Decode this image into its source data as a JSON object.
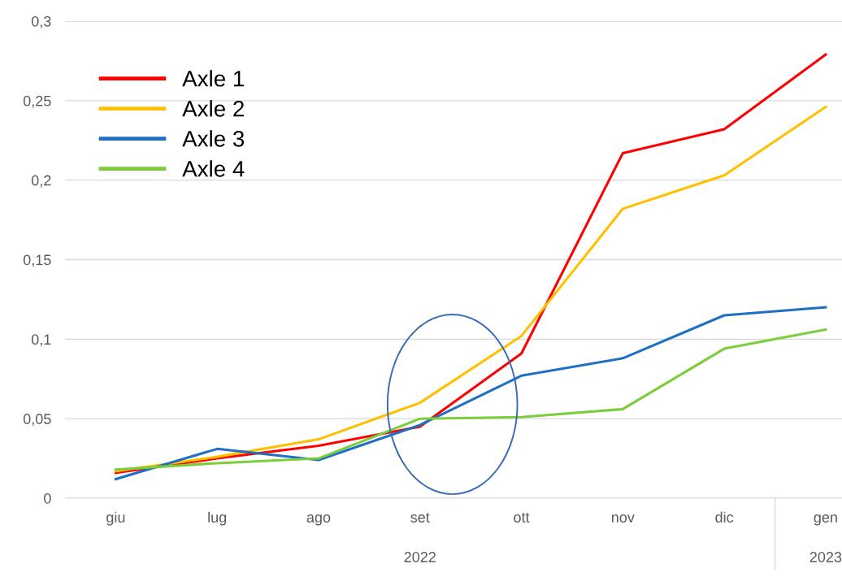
{
  "chart_data": {
    "type": "line",
    "categories": [
      "giu",
      "lug",
      "ago",
      "set",
      "ott",
      "nov",
      "dic",
      "gen"
    ],
    "series": [
      {
        "name": "Axle 1",
        "color": "#ff0000",
        "values": [
          0.016,
          0.025,
          0.033,
          0.045,
          0.091,
          0.217,
          0.232,
          0.279
        ]
      },
      {
        "name": "Axle 2",
        "color": "#ffc000",
        "values": [
          0.017,
          0.026,
          0.037,
          0.06,
          0.102,
          0.182,
          0.203,
          0.246
        ]
      },
      {
        "name": "Axle 3",
        "color": "#1f6fc4",
        "values": [
          0.012,
          0.031,
          0.024,
          0.046,
          0.077,
          0.088,
          0.115,
          0.12
        ]
      },
      {
        "name": "Axle 4",
        "color": "#7ccd3c",
        "values": [
          0.018,
          0.022,
          0.025,
          0.05,
          0.051,
          0.056,
          0.094,
          0.106
        ]
      }
    ],
    "ylim": [
      0,
      0.3
    ],
    "yticks": [
      {
        "value": 0,
        "label": "0"
      },
      {
        "value": 0.05,
        "label": "0,05"
      },
      {
        "value": 0.1,
        "label": "0,1"
      },
      {
        "value": 0.15,
        "label": "0,15"
      },
      {
        "value": 0.2,
        "label": "0,2"
      },
      {
        "value": 0.25,
        "label": "0,25"
      },
      {
        "value": 0.3,
        "label": "0,3"
      }
    ],
    "annotations": [
      "2022",
      "2023"
    ],
    "grid": "y",
    "legend": "top left",
    "marker": "none",
    "line_style": "solid"
  }
}
